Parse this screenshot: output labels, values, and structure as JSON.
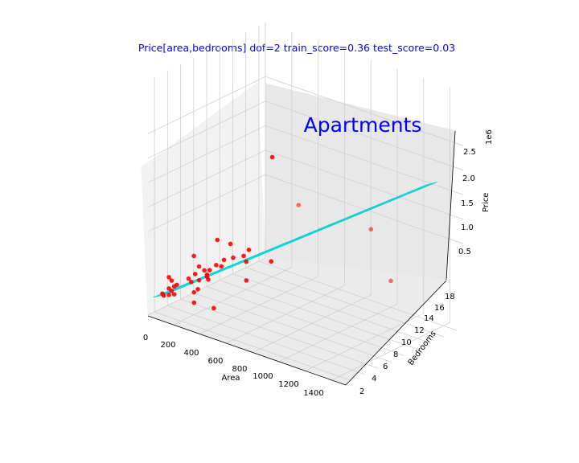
{
  "chart_data": {
    "type": "scatter",
    "title": "Price[area,bedrooms]  dof=2  train_score=0.36  test_score=0.03",
    "annotation": "Apartments",
    "xlabel": "Area",
    "ylabel": "Bedrooms",
    "zlabel": "Price",
    "z_offset_label": "1e6",
    "x_ticks": [
      "0",
      "200",
      "400",
      "600",
      "800",
      "1000",
      "1200",
      "1400"
    ],
    "y_ticks": [
      "2",
      "4",
      "6",
      "8",
      "10",
      "12",
      "14",
      "16",
      "18"
    ],
    "z_ticks": [
      "0.5",
      "1.0",
      "1.5",
      "2.0",
      "2.5"
    ],
    "colors": {
      "points": "#ff0000",
      "surface": "#00e5e5",
      "title": "#0000ff"
    },
    "surface_corners": [
      {
        "x": 40,
        "y": 1,
        "z": 0.05
      },
      {
        "x": 70,
        "y": 2,
        "z": 0.06
      },
      {
        "x": 1270,
        "y": 18,
        "z": 2.4
      },
      {
        "x": 1300,
        "y": 19,
        "z": 2.42
      }
    ],
    "points": [
      {
        "x": 250,
        "y": 15,
        "z": 2.2
      },
      {
        "x": 400,
        "y": 16,
        "z": 1.3
      },
      {
        "x": 850,
        "y": 18,
        "z": 1.1
      },
      {
        "x": 1050,
        "y": 17,
        "z": 0.3
      },
      {
        "x": 180,
        "y": 8,
        "z": 0.9
      },
      {
        "x": 230,
        "y": 9,
        "z": 0.8
      },
      {
        "x": 390,
        "y": 12,
        "z": 0.4
      },
      {
        "x": 200,
        "y": 4,
        "z": 0.85
      },
      {
        "x": 60,
        "y": 3,
        "z": 0.35
      },
      {
        "x": 80,
        "y": 3,
        "z": 0.3
      },
      {
        "x": 60,
        "y": 2,
        "z": 0.08
      },
      {
        "x": 70,
        "y": 2,
        "z": 0.05
      },
      {
        "x": 60,
        "y": 3,
        "z": 0.12
      },
      {
        "x": 110,
        "y": 2,
        "z": 0.1
      },
      {
        "x": 150,
        "y": 2,
        "z": 0.15
      },
      {
        "x": 300,
        "y": 2,
        "z": 0.12
      },
      {
        "x": 450,
        "y": 2,
        "z": 0.15
      },
      {
        "x": 140,
        "y": 6,
        "z": 0.45
      },
      {
        "x": 160,
        "y": 5,
        "z": 0.38
      },
      {
        "x": 200,
        "y": 6,
        "z": 0.3
      },
      {
        "x": 220,
        "y": 6,
        "z": 0.45
      },
      {
        "x": 230,
        "y": 5,
        "z": 0.52
      },
      {
        "x": 250,
        "y": 5,
        "z": 0.45
      },
      {
        "x": 270,
        "y": 6,
        "z": 0.6
      },
      {
        "x": 280,
        "y": 7,
        "z": 0.65
      },
      {
        "x": 260,
        "y": 7,
        "z": 0.5
      },
      {
        "x": 300,
        "y": 8,
        "z": 0.65
      },
      {
        "x": 330,
        "y": 9,
        "z": 0.65
      },
      {
        "x": 350,
        "y": 9,
        "z": 0.55
      },
      {
        "x": 320,
        "y": 10,
        "z": 0.7
      },
      {
        "x": 160,
        "y": 4,
        "z": 0.35
      },
      {
        "x": 180,
        "y": 4,
        "z": 0.3
      },
      {
        "x": 120,
        "y": 3,
        "z": 0.25
      },
      {
        "x": 190,
        "y": 5,
        "z": 0.28
      },
      {
        "x": 230,
        "y": 4,
        "z": 0.2
      },
      {
        "x": 250,
        "y": 3,
        "z": 0.22
      },
      {
        "x": 100,
        "y": 3,
        "z": 0.2
      },
      {
        "x": 130,
        "y": 2,
        "z": 0.2
      },
      {
        "x": 210,
        "y": 6,
        "z": 0.25
      },
      {
        "x": 400,
        "y": 8,
        "z": 0.28
      }
    ]
  }
}
